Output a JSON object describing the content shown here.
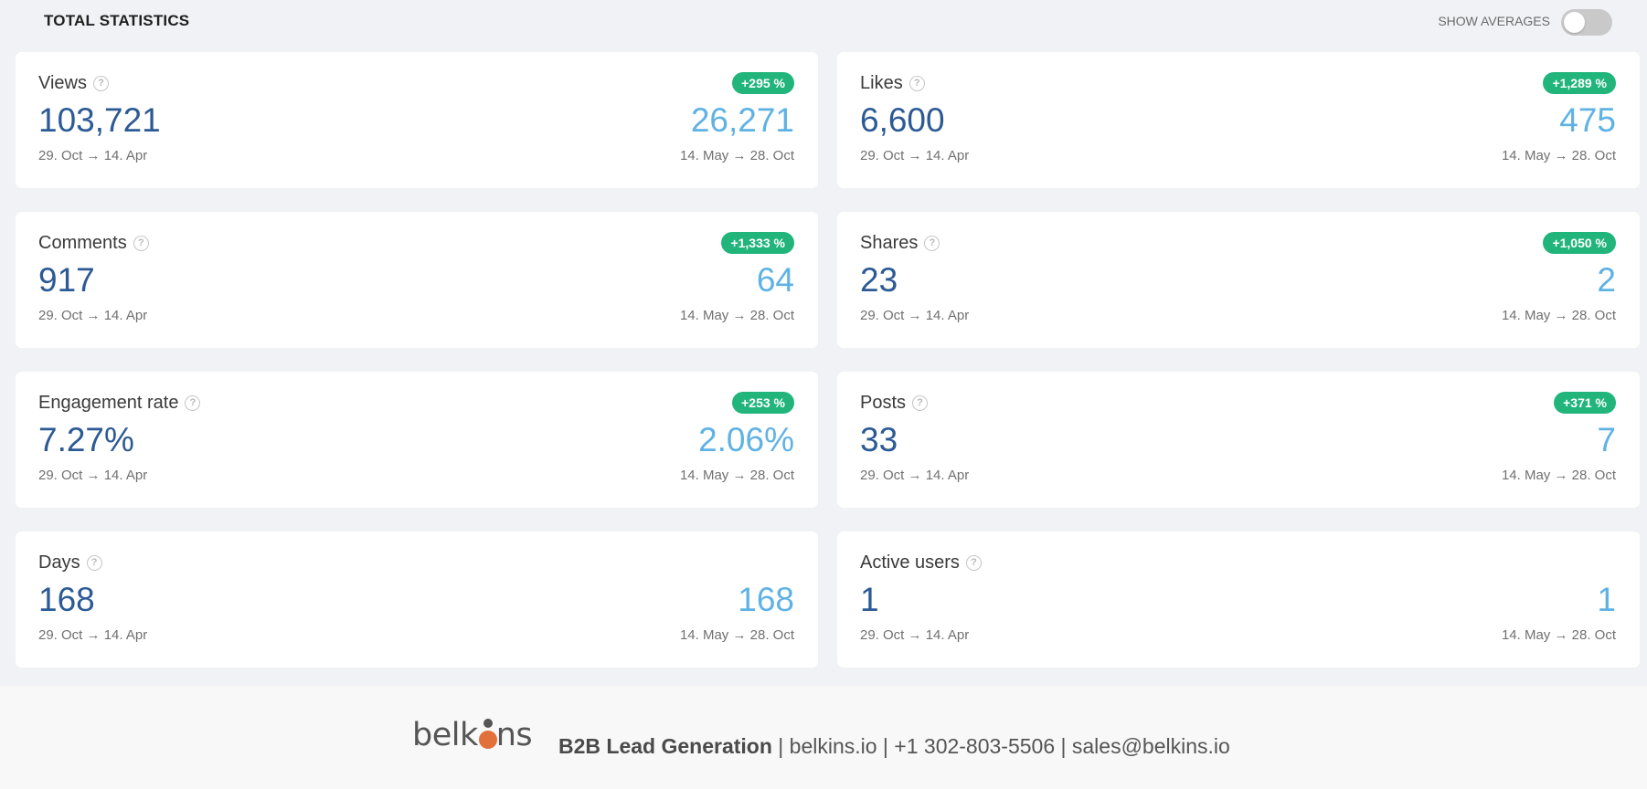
{
  "header": {
    "title": "TOTAL STATISTICS",
    "show_averages_label": "SHOW AVERAGES",
    "show_averages_on": false
  },
  "cards": [
    {
      "label": "Views",
      "badge": "+295 %",
      "value": "103,721",
      "range": "29. Oct → 14. Apr",
      "prev_value": "26,271",
      "prev_range": "14. May → 28. Oct"
    },
    {
      "label": "Likes",
      "badge": "+1,289 %",
      "value": "6,600",
      "range": "29. Oct → 14. Apr",
      "prev_value": "475",
      "prev_range": "14. May → 28. Oct"
    },
    {
      "label": "Comments",
      "badge": "+1,333 %",
      "value": "917",
      "range": "29. Oct → 14. Apr",
      "prev_value": "64",
      "prev_range": "14. May → 28. Oct"
    },
    {
      "label": "Shares",
      "badge": "+1,050 %",
      "value": "23",
      "range": "29. Oct → 14. Apr",
      "prev_value": "2",
      "prev_range": "14. May → 28. Oct"
    },
    {
      "label": "Engagement rate",
      "badge": "+253 %",
      "value": "7.27%",
      "range": "29. Oct → 14. Apr",
      "prev_value": "2.06%",
      "prev_range": "14. May → 28. Oct"
    },
    {
      "label": "Posts",
      "badge": "+371 %",
      "value": "33",
      "range": "29. Oct → 14. Apr",
      "prev_value": "7",
      "prev_range": "14. May → 28. Oct"
    },
    {
      "label": "Days",
      "badge": "",
      "value": "168",
      "range": "29. Oct → 14. Apr",
      "prev_value": "168",
      "prev_range": "14. May → 28. Oct"
    },
    {
      "label": "Active users",
      "badge": "",
      "value": "1",
      "range": "29. Oct → 14. Apr",
      "prev_value": "1",
      "prev_range": "14. May → 28. Oct"
    }
  ],
  "footer": {
    "logo_left": "belk",
    "logo_right": "ns",
    "tagline_bold": "B2B Lead Generation",
    "tagline_rest": "| belkins.io | +1 302-803-5506 | sales@belkins.io"
  },
  "icons": {
    "help": "question-circle-icon",
    "logo_mark": "person-icon"
  },
  "colors": {
    "primary_value": "#2c5a94",
    "previous_value": "#5fb2e4",
    "badge": "#21b57b",
    "logo_accent": "#e2703a"
  }
}
